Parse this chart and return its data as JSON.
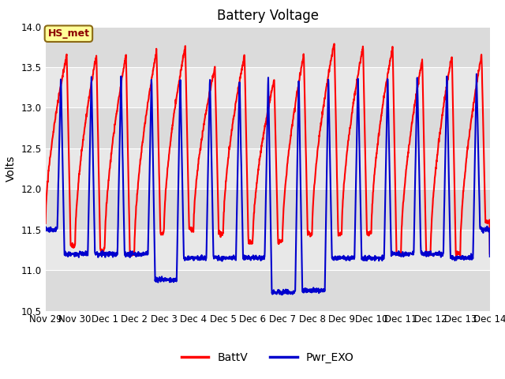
{
  "title": "Battery Voltage",
  "ylabel": "Volts",
  "ylim": [
    10.5,
    14.0
  ],
  "yticks": [
    10.5,
    11.0,
    11.5,
    12.0,
    12.5,
    13.0,
    13.5,
    14.0
  ],
  "xtick_labels": [
    "Nov 29",
    "Nov 30",
    "Dec 1",
    "Dec 2",
    "Dec 3",
    "Dec 4",
    "Dec 5",
    "Dec 6",
    "Dec 7",
    "Dec 8",
    "Dec 9",
    "Dec 10",
    "Dec 11",
    "Dec 12",
    "Dec 13",
    "Dec 14"
  ],
  "annotation_text": "HS_met",
  "annotation_color": "#8B0000",
  "annotation_bg": "#FFFF99",
  "annotation_edge": "#8B6914",
  "line1_color": "#FF0000",
  "line2_color": "#0000CD",
  "line1_label": "BattV",
  "line2_label": "Pwr_EXO",
  "line_width": 1.5,
  "grid_color": "#D8D8D8",
  "bg_color": "#E8E8E8",
  "title_fontsize": 12,
  "tick_fontsize": 8.5,
  "ylabel_fontsize": 10
}
